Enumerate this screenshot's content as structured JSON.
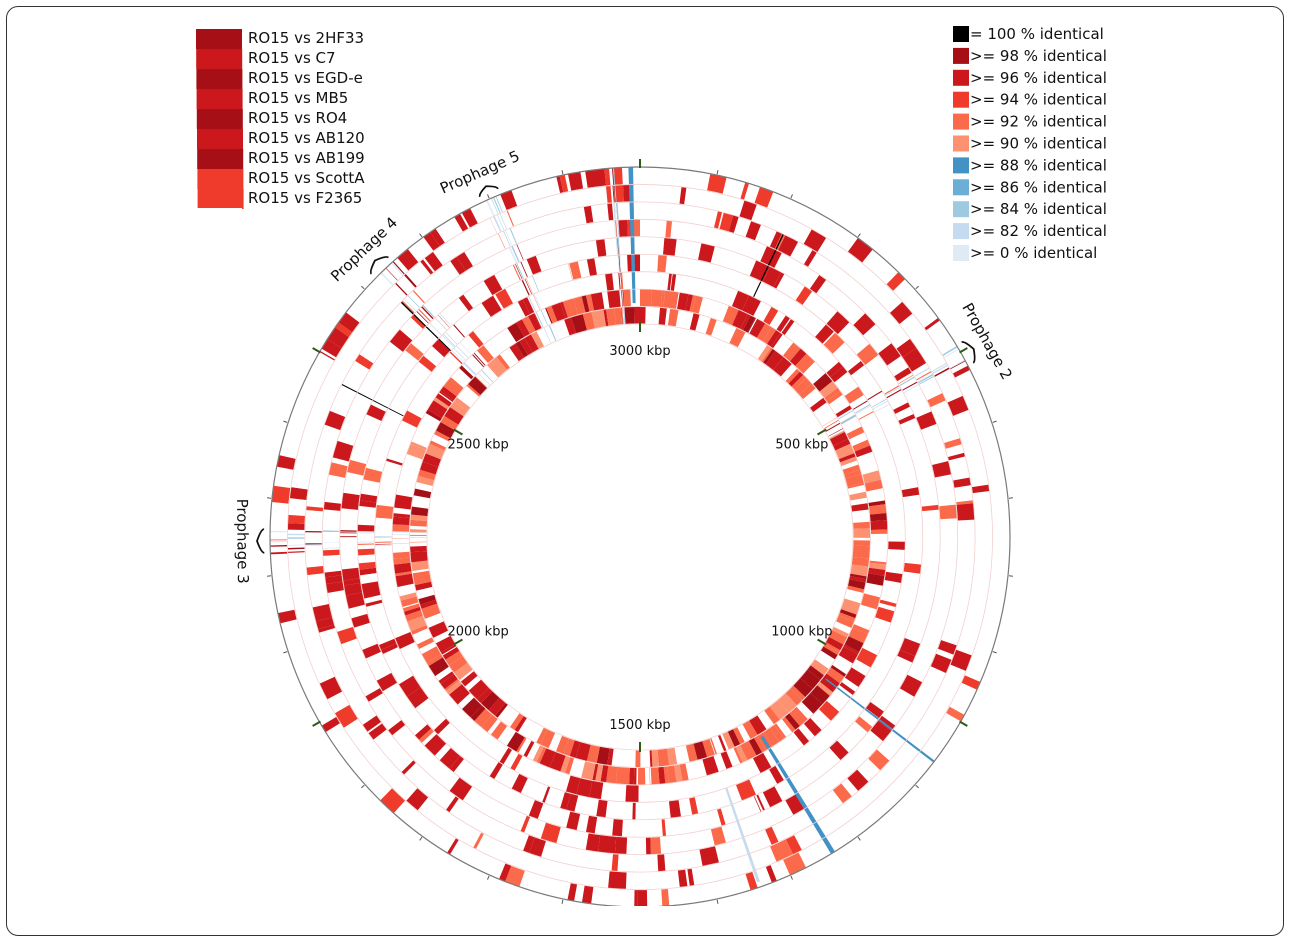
{
  "diagram": {
    "center_label_positions": [
      "3000 kbp",
      "500 kbp",
      "1000 kbp",
      "1500 kbp",
      "2000 kbp",
      "2500 kbp"
    ],
    "genome_length_kbp": 3000,
    "tick_labels": [
      {
        "label": "500 kbp",
        "kbp": 500
      },
      {
        "label": "1000 kbp",
        "kbp": 1000
      },
      {
        "label": "1500 kbp",
        "kbp": 1500
      },
      {
        "label": "2000 kbp",
        "kbp": 2000
      },
      {
        "label": "2500 kbp",
        "kbp": 2500
      },
      {
        "label": "3000 kbp",
        "kbp": 0
      }
    ],
    "rings": [
      {
        "name": "RO15 vs 2HF33"
      },
      {
        "name": "RO15 vs C7"
      },
      {
        "name": "RO15 vs EGD-e"
      },
      {
        "name": "RO15 vs MB5"
      },
      {
        "name": "RO15 vs RO4"
      },
      {
        "name": "RO15 vs AB120"
      },
      {
        "name": "RO15 vs AB199"
      },
      {
        "name": "RO15 vs ScottA"
      },
      {
        "name": "RO15 vs F2365"
      }
    ],
    "identity_legend": [
      {
        "label": "= 100 % identical",
        "color": "#000000"
      },
      {
        "label": ">= 98 % identical",
        "color": "#a50f15"
      },
      {
        "label": ">= 96 % identical",
        "color": "#cb181d"
      },
      {
        "label": ">= 94 % identical",
        "color": "#ef3b2c"
      },
      {
        "label": ">= 92 % identical",
        "color": "#fb6a4a"
      },
      {
        "label": ">= 90 % identical",
        "color": "#fc9272"
      },
      {
        "label": ">= 88 % identical",
        "color": "#4292c6"
      },
      {
        "label": ">= 86 % identical",
        "color": "#6baed6"
      },
      {
        "label": ">= 84 % identical",
        "color": "#9ecae1"
      },
      {
        "label": ">= 82 % identical",
        "color": "#c6dbef"
      },
      {
        "label": ">= 0 % identical",
        "color": "#deebf7"
      }
    ],
    "prophages": [
      {
        "label": "Prophage 2",
        "kbp_start": 490,
        "kbp_end": 520
      },
      {
        "label": "Prophage 3",
        "kbp_start": 2230,
        "kbp_end": 2260
      },
      {
        "label": "Prophage 4",
        "kbp_start": 2620,
        "kbp_end": 2650
      },
      {
        "label": "Prophage 5",
        "kbp_start": 2790,
        "kbp_end": 2815
      }
    ],
    "gap_regions_kbp": [
      {
        "start": 490,
        "end": 520
      },
      {
        "start": 2230,
        "end": 2260
      },
      {
        "start": 2620,
        "end": 2655
      },
      {
        "start": 2790,
        "end": 2815
      },
      {
        "start": 2960,
        "end": 2966
      }
    ]
  }
}
